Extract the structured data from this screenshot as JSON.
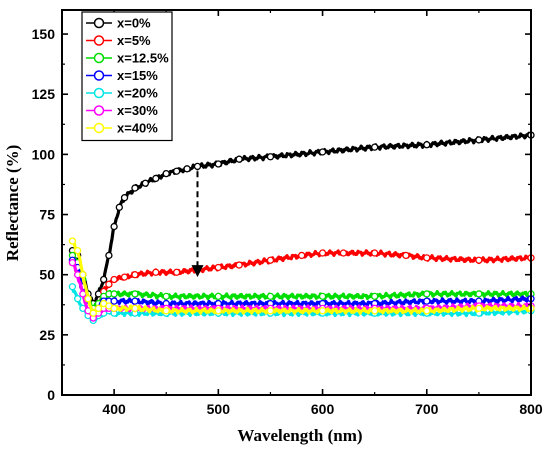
{
  "chart_data": {
    "type": "line",
    "title": "",
    "xlabel": "Wavelength (nm)",
    "ylabel": "Reflectance (%)",
    "xlim": [
      350,
      800
    ],
    "ylim": [
      0,
      160
    ],
    "xticks": [
      400,
      500,
      600,
      700,
      800
    ],
    "yticks": [
      0,
      25,
      50,
      75,
      100,
      125,
      150
    ],
    "grid": false,
    "legend_position": "top-left",
    "series": [
      {
        "name": "x=0%",
        "color": "#000000",
        "marker": "circle",
        "x": [
          360,
          365,
          370,
          375,
          380,
          385,
          390,
          395,
          400,
          405,
          410,
          420,
          430,
          440,
          450,
          460,
          470,
          480,
          500,
          520,
          550,
          600,
          650,
          700,
          750,
          800
        ],
        "y": [
          60,
          58,
          50,
          42,
          38,
          42,
          48,
          58,
          70,
          78,
          82,
          86,
          88,
          90,
          92,
          93,
          94,
          95,
          96,
          98,
          99,
          101,
          103,
          104,
          106,
          108
        ]
      },
      {
        "name": "x=5%",
        "color": "#ff0000",
        "marker": "circle",
        "x": [
          360,
          365,
          370,
          375,
          380,
          385,
          390,
          395,
          400,
          410,
          420,
          440,
          460,
          480,
          500,
          520,
          550,
          580,
          600,
          620,
          650,
          680,
          700,
          750,
          800
        ],
        "y": [
          55,
          52,
          45,
          38,
          35,
          38,
          43,
          46,
          48,
          49,
          50,
          51,
          51,
          52,
          53,
          54,
          56,
          58,
          59,
          59,
          59,
          58,
          57,
          56,
          57
        ]
      },
      {
        "name": "x=12.5%",
        "color": "#00dd00",
        "marker": "circle",
        "x": [
          360,
          365,
          370,
          375,
          380,
          385,
          390,
          395,
          400,
          420,
          450,
          500,
          550,
          600,
          650,
          700,
          750,
          800
        ],
        "y": [
          58,
          55,
          48,
          40,
          36,
          38,
          41,
          42,
          42,
          42,
          41,
          41,
          41,
          41,
          41,
          42,
          42,
          42
        ]
      },
      {
        "name": "x=15%",
        "color": "#0000ff",
        "marker": "circle",
        "x": [
          360,
          365,
          370,
          375,
          380,
          385,
          390,
          395,
          400,
          420,
          450,
          500,
          550,
          600,
          650,
          700,
          750,
          800
        ],
        "y": [
          56,
          53,
          45,
          37,
          34,
          36,
          39,
          39,
          39,
          39,
          38,
          38,
          38,
          38,
          38,
          39,
          39,
          40
        ]
      },
      {
        "name": "x=20%",
        "color": "#00e5e5",
        "marker": "circle",
        "x": [
          360,
          365,
          370,
          375,
          380,
          385,
          390,
          395,
          400,
          420,
          450,
          500,
          550,
          600,
          650,
          700,
          750,
          800
        ],
        "y": [
          45,
          40,
          36,
          33,
          31,
          33,
          34,
          35,
          34,
          34,
          34,
          34,
          34,
          34,
          34,
          34,
          34,
          35
        ]
      },
      {
        "name": "x=30%",
        "color": "#ff00ff",
        "marker": "circle",
        "x": [
          360,
          365,
          370,
          375,
          380,
          385,
          390,
          395,
          400,
          420,
          450,
          500,
          550,
          600,
          650,
          700,
          750,
          800
        ],
        "y": [
          55,
          50,
          42,
          35,
          32,
          34,
          36,
          36,
          36,
          36,
          36,
          36,
          36,
          36,
          36,
          36,
          37,
          37
        ]
      },
      {
        "name": "x=40%",
        "color": "#ffff00",
        "marker": "circle",
        "x": [
          360,
          365,
          370,
          375,
          380,
          385,
          390,
          395,
          400,
          420,
          450,
          500,
          550,
          600,
          650,
          700,
          750,
          800
        ],
        "y": [
          64,
          60,
          50,
          40,
          34,
          36,
          38,
          37,
          36,
          36,
          35,
          35,
          35,
          35,
          35,
          35,
          36,
          36
        ]
      }
    ],
    "annotations": [
      {
        "type": "dashed-arrow",
        "from": [
          480,
          93
        ],
        "to": [
          480,
          50
        ]
      }
    ]
  }
}
